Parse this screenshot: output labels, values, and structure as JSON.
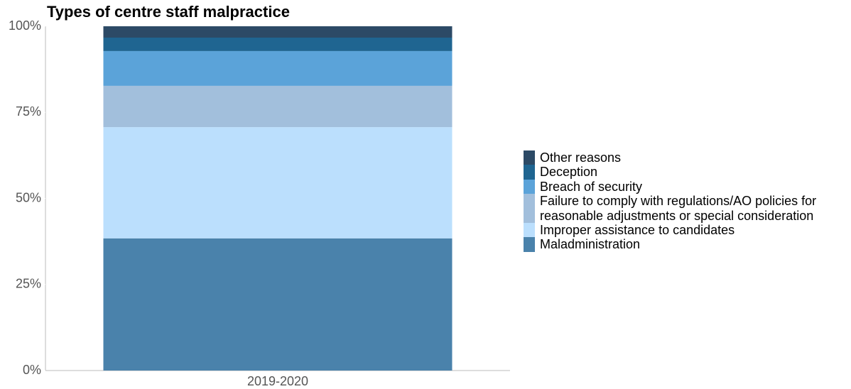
{
  "chart_data": {
    "type": "stacked_bar",
    "title": "Types of centre staff malpractice",
    "categories": [
      "2019-2020"
    ],
    "series": [
      {
        "name": "Maladministration",
        "color": "#4a82ab",
        "values": [
          38.4
        ]
      },
      {
        "name": "Improper assistance to candidates",
        "color": "#bbdffd",
        "values": [
          32.3
        ]
      },
      {
        "name": "Failure to comply with regulations/AO policies for reasonable adjustments or special consideration",
        "color": "#a2bfdc",
        "values": [
          12.0
        ]
      },
      {
        "name": "Breach of security",
        "color": "#5ba3d9",
        "values": [
          10.1
        ]
      },
      {
        "name": "Deception",
        "color": "#1f6591",
        "values": [
          3.9
        ]
      },
      {
        "name": "Other reasons",
        "color": "#2c4a66",
        "values": [
          3.3
        ]
      }
    ],
    "ylim": [
      0,
      100
    ],
    "yticks": [
      {
        "value": 0,
        "label": "0%"
      },
      {
        "value": 25,
        "label": "25%"
      },
      {
        "value": 50,
        "label": "50%"
      },
      {
        "value": 75,
        "label": "75%"
      },
      {
        "value": 100,
        "label": "100%"
      }
    ],
    "legend": "right"
  }
}
